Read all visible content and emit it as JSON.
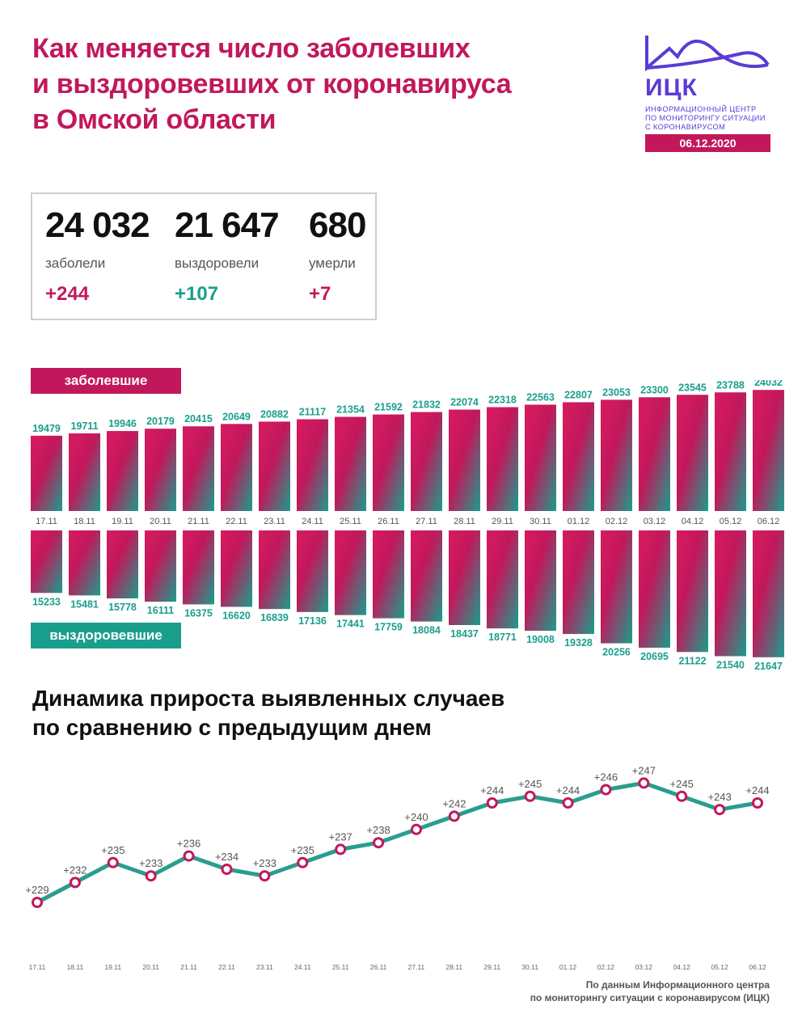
{
  "header": {
    "title_lines": [
      "Как меняется число заболевших",
      "и выздоровевших от коронавируса",
      "в Омской области"
    ]
  },
  "logo": {
    "abbr": "ИЦК",
    "subtitle_lines": [
      "Информационный центр",
      "по мониторингу ситуации",
      "с коронавирусом"
    ],
    "date": "06.12.2020",
    "color": "#5b3bd6"
  },
  "stats": [
    {
      "value": "24 032",
      "label": "заболели",
      "delta": "+244",
      "delta_color": "#c2185b"
    },
    {
      "value": "21 647",
      "label": "выздоровели",
      "delta": "+107",
      "delta_color": "#1a9e8c"
    },
    {
      "value": "680",
      "label": "умерли",
      "delta": "+7",
      "delta_color": "#c2185b"
    }
  ],
  "colors": {
    "brand_magenta": "#c2185b",
    "brand_teal": "#1a9e8c",
    "line": "#2a9d8f",
    "marker": "#c2185b"
  },
  "section2": {
    "title_lines": [
      "Динамика прироста выявленных случаев",
      "по сравнению с предыдущим днем"
    ]
  },
  "source": {
    "lines": [
      "По данным Информационного центра",
      "по мониторингу ситуации с коронавирусом (ИЦК)"
    ]
  },
  "chart_data": [
    {
      "type": "bar",
      "categories": [
        "17.11",
        "18.11",
        "19.11",
        "20.11",
        "21.11",
        "22.11",
        "23.11",
        "24.11",
        "25.11",
        "26.11",
        "27.11",
        "28.11",
        "29.11",
        "30.11",
        "01.12",
        "02.12",
        "03.12",
        "04.12",
        "05.12",
        "06.12"
      ],
      "series": [
        {
          "name": "заболевшие",
          "values": [
            19479,
            19711,
            19946,
            20179,
            20415,
            20649,
            20882,
            21117,
            21354,
            21592,
            21832,
            22074,
            22318,
            22563,
            22807,
            23053,
            23300,
            23545,
            23788,
            24032
          ]
        },
        {
          "name": "выздоровевшие",
          "values": [
            15233,
            15481,
            15778,
            16111,
            16375,
            16620,
            16839,
            17136,
            17441,
            17759,
            18084,
            18437,
            18771,
            19008,
            19328,
            20256,
            20695,
            21122,
            21540,
            21647
          ]
        }
      ]
    },
    {
      "type": "line",
      "x": [
        "17.11",
        "18.11",
        "19.11",
        "20.11",
        "21.11",
        "22.11",
        "23.11",
        "24.11",
        "25.11",
        "26.11",
        "27.11",
        "28.11",
        "29.11",
        "30.11",
        "01.12",
        "02.12",
        "03.12",
        "04.12",
        "05.12",
        "06.12"
      ],
      "values": [
        229,
        232,
        235,
        233,
        236,
        234,
        233,
        235,
        237,
        238,
        240,
        242,
        244,
        245,
        244,
        246,
        247,
        245,
        243,
        244
      ],
      "labels": [
        "+229",
        "+232",
        "+235",
        "+233",
        "+236",
        "+234",
        "+233",
        "+235",
        "+237",
        "+238",
        "+240",
        "+242",
        "+244",
        "+245",
        "+244",
        "+246",
        "+247",
        "+245",
        "+243",
        "+244"
      ],
      "grid": false
    }
  ]
}
